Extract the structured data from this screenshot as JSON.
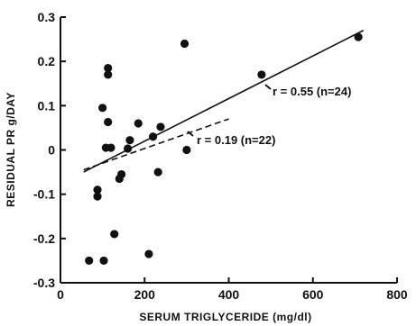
{
  "chart_data": {
    "type": "scatter",
    "title": "",
    "xlabel": "SERUM TRIGLYCERIDE (mg/dl)",
    "ylabel": "RESIDUAL PR g/DAY",
    "xlim": [
      0,
      800
    ],
    "ylim": [
      -0.3,
      0.3
    ],
    "xticks": [
      "0",
      "200",
      "400",
      "600",
      "800"
    ],
    "yticks": [
      "-0.3",
      "-0.2",
      "-0.1",
      "0",
      "0.1",
      "0.2",
      "0.3"
    ],
    "grid": false,
    "points": [
      {
        "x": 68,
        "y": -0.25
      },
      {
        "x": 88,
        "y": -0.09
      },
      {
        "x": 88,
        "y": -0.105
      },
      {
        "x": 100,
        "y": 0.095
      },
      {
        "x": 103,
        "y": -0.25
      },
      {
        "x": 108,
        "y": 0.005
      },
      {
        "x": 113,
        "y": 0.185
      },
      {
        "x": 113,
        "y": 0.17
      },
      {
        "x": 113,
        "y": 0.063
      },
      {
        "x": 120,
        "y": 0.005
      },
      {
        "x": 128,
        "y": -0.19
      },
      {
        "x": 140,
        "y": -0.065
      },
      {
        "x": 145,
        "y": -0.055
      },
      {
        "x": 160,
        "y": 0.003
      },
      {
        "x": 165,
        "y": 0.022
      },
      {
        "x": 185,
        "y": 0.06
      },
      {
        "x": 210,
        "y": -0.235
      },
      {
        "x": 220,
        "y": 0.03
      },
      {
        "x": 232,
        "y": -0.05
      },
      {
        "x": 238,
        "y": 0.052
      },
      {
        "x": 295,
        "y": 0.24
      },
      {
        "x": 300,
        "y": 0.0
      },
      {
        "x": 478,
        "y": 0.17
      },
      {
        "x": 708,
        "y": 0.255
      }
    ],
    "fit_lines": [
      {
        "label": "r = 0.55 (n=24)",
        "style": "solid",
        "x": [
          55,
          720
        ],
        "y": [
          -0.05,
          0.27
        ]
      },
      {
        "label": "r = 0.19 (n=22)",
        "style": "dashed",
        "x": [
          55,
          400
        ],
        "y": [
          -0.045,
          0.07
        ]
      }
    ]
  }
}
